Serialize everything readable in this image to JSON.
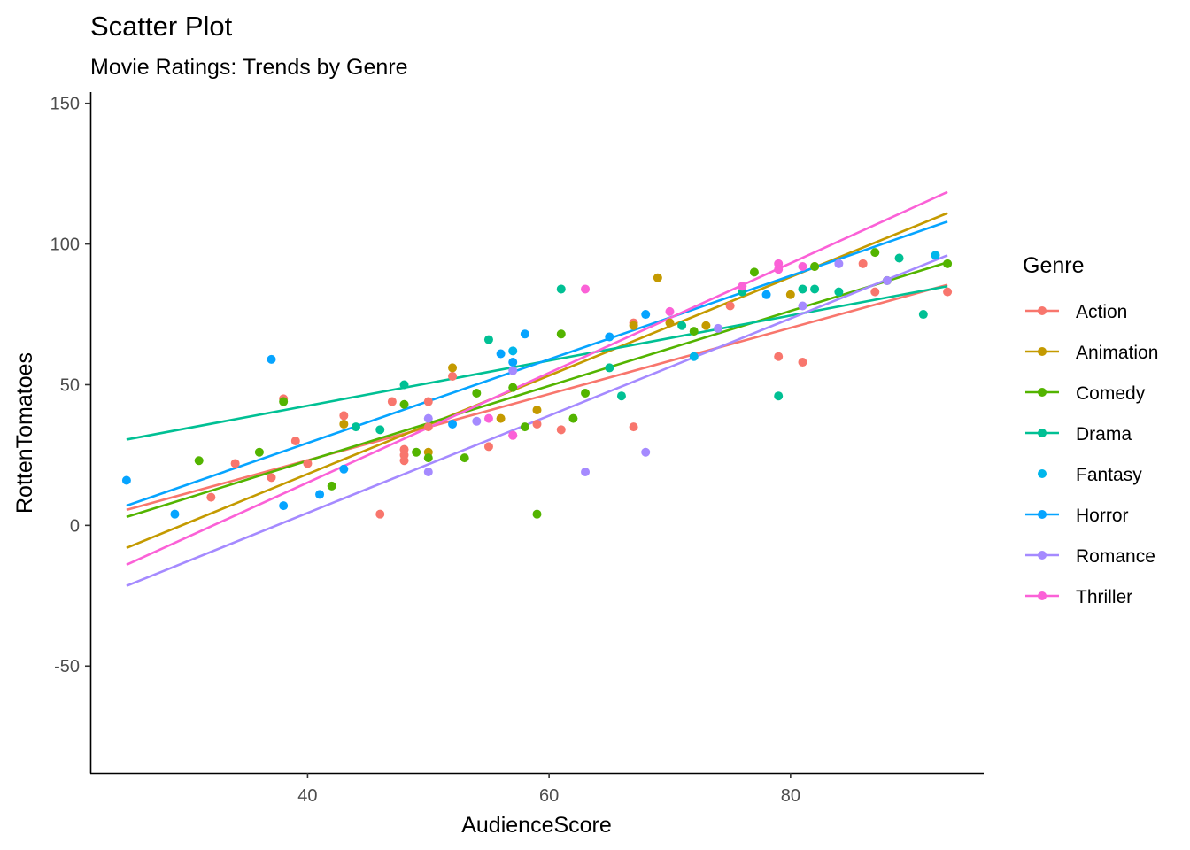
{
  "chart_data": {
    "type": "scatter",
    "title": "Scatter Plot",
    "subtitle": "Movie Ratings: Trends by Genre",
    "xlabel": "AudienceScore",
    "ylabel": "RottenTomatoes",
    "xlim": [
      22,
      96
    ],
    "ylim": [
      -88,
      154
    ],
    "x_ticks": [
      40,
      60,
      80
    ],
    "y_ticks": [
      -50,
      0,
      50,
      100,
      150
    ],
    "grid": false,
    "legend": {
      "title": "Genre",
      "position": "right"
    },
    "series": [
      {
        "name": "Action",
        "color": "#F8766D",
        "points": [
          [
            32,
            10
          ],
          [
            34,
            22
          ],
          [
            37,
            17
          ],
          [
            38,
            45
          ],
          [
            39,
            30
          ],
          [
            40,
            22
          ],
          [
            43,
            39
          ],
          [
            46,
            4
          ],
          [
            47,
            44
          ],
          [
            48,
            27
          ],
          [
            48,
            25
          ],
          [
            48,
            23
          ],
          [
            50,
            44
          ],
          [
            50,
            35
          ],
          [
            52,
            53
          ],
          [
            55,
            28
          ],
          [
            57,
            32
          ],
          [
            59,
            36
          ],
          [
            61,
            34
          ],
          [
            67,
            35
          ],
          [
            67,
            72
          ],
          [
            75,
            78
          ],
          [
            79,
            60
          ],
          [
            81,
            58
          ],
          [
            86,
            93
          ],
          [
            87,
            83
          ],
          [
            93,
            83
          ]
        ],
        "trend": [
          [
            25,
            5.5
          ],
          [
            93,
            85.5
          ]
        ]
      },
      {
        "name": "Animation",
        "color": "#C49A00",
        "points": [
          [
            43,
            36
          ],
          [
            50,
            26
          ],
          [
            52,
            56
          ],
          [
            56,
            38
          ],
          [
            59,
            41
          ],
          [
            67,
            71
          ],
          [
            69,
            88
          ],
          [
            70,
            72
          ],
          [
            73,
            71
          ],
          [
            80,
            82
          ],
          [
            82,
            92
          ]
        ],
        "trend": [
          [
            25,
            -8
          ],
          [
            93,
            111
          ]
        ]
      },
      {
        "name": "Comedy",
        "color": "#53B400",
        "points": [
          [
            31,
            23
          ],
          [
            36,
            26
          ],
          [
            38,
            44
          ],
          [
            42,
            14
          ],
          [
            48,
            43
          ],
          [
            49,
            26
          ],
          [
            50,
            24
          ],
          [
            53,
            24
          ],
          [
            54,
            47
          ],
          [
            57,
            49
          ],
          [
            58,
            35
          ],
          [
            59,
            4
          ],
          [
            61,
            68
          ],
          [
            62,
            38
          ],
          [
            63,
            47
          ],
          [
            72,
            69
          ],
          [
            77,
            90
          ],
          [
            82,
            92
          ],
          [
            87,
            97
          ],
          [
            88,
            87
          ],
          [
            93,
            93
          ]
        ],
        "trend": [
          [
            25,
            3
          ],
          [
            93,
            93.5
          ]
        ]
      },
      {
        "name": "Drama",
        "color": "#00C094",
        "points": [
          [
            44,
            35
          ],
          [
            46,
            34
          ],
          [
            48,
            50
          ],
          [
            55,
            66
          ],
          [
            61,
            84
          ],
          [
            65,
            56
          ],
          [
            66,
            46
          ],
          [
            71,
            71
          ],
          [
            76,
            83
          ],
          [
            79,
            46
          ],
          [
            81,
            84
          ],
          [
            82,
            84
          ],
          [
            84,
            83
          ],
          [
            89,
            95
          ],
          [
            91,
            75
          ]
        ],
        "trend": [
          [
            25,
            30.5
          ],
          [
            93,
            85
          ]
        ]
      },
      {
        "name": "Fantasy",
        "color": "#00B6EB",
        "points": [
          [
            57,
            62
          ],
          [
            72,
            60
          ],
          [
            92,
            96
          ]
        ],
        "trend": []
      },
      {
        "name": "Horror",
        "color": "#06A4FF",
        "points": [
          [
            25,
            16
          ],
          [
            29,
            4
          ],
          [
            37,
            59
          ],
          [
            38,
            7
          ],
          [
            41,
            11
          ],
          [
            43,
            20
          ],
          [
            52,
            36
          ],
          [
            56,
            61
          ],
          [
            57,
            58
          ],
          [
            58,
            68
          ],
          [
            65,
            67
          ],
          [
            68,
            75
          ],
          [
            78,
            82
          ]
        ],
        "trend": [
          [
            25,
            7
          ],
          [
            93,
            108
          ]
        ]
      },
      {
        "name": "Romance",
        "color": "#A58AFF",
        "points": [
          [
            50,
            38
          ],
          [
            50,
            19
          ],
          [
            54,
            37
          ],
          [
            57,
            55
          ],
          [
            63,
            19
          ],
          [
            68,
            26
          ],
          [
            74,
            70
          ],
          [
            81,
            78
          ],
          [
            84,
            93
          ],
          [
            88,
            87
          ]
        ],
        "trend": [
          [
            25,
            -21.5
          ],
          [
            93,
            96
          ]
        ]
      },
      {
        "name": "Thriller",
        "color": "#FB61D7",
        "points": [
          [
            55,
            38
          ],
          [
            57,
            32
          ],
          [
            63,
            84
          ],
          [
            70,
            76
          ],
          [
            76,
            85
          ],
          [
            79,
            93
          ],
          [
            79,
            91
          ],
          [
            81,
            92
          ]
        ],
        "trend": [
          [
            25,
            -14
          ],
          [
            93,
            118.5
          ]
        ]
      }
    ]
  }
}
